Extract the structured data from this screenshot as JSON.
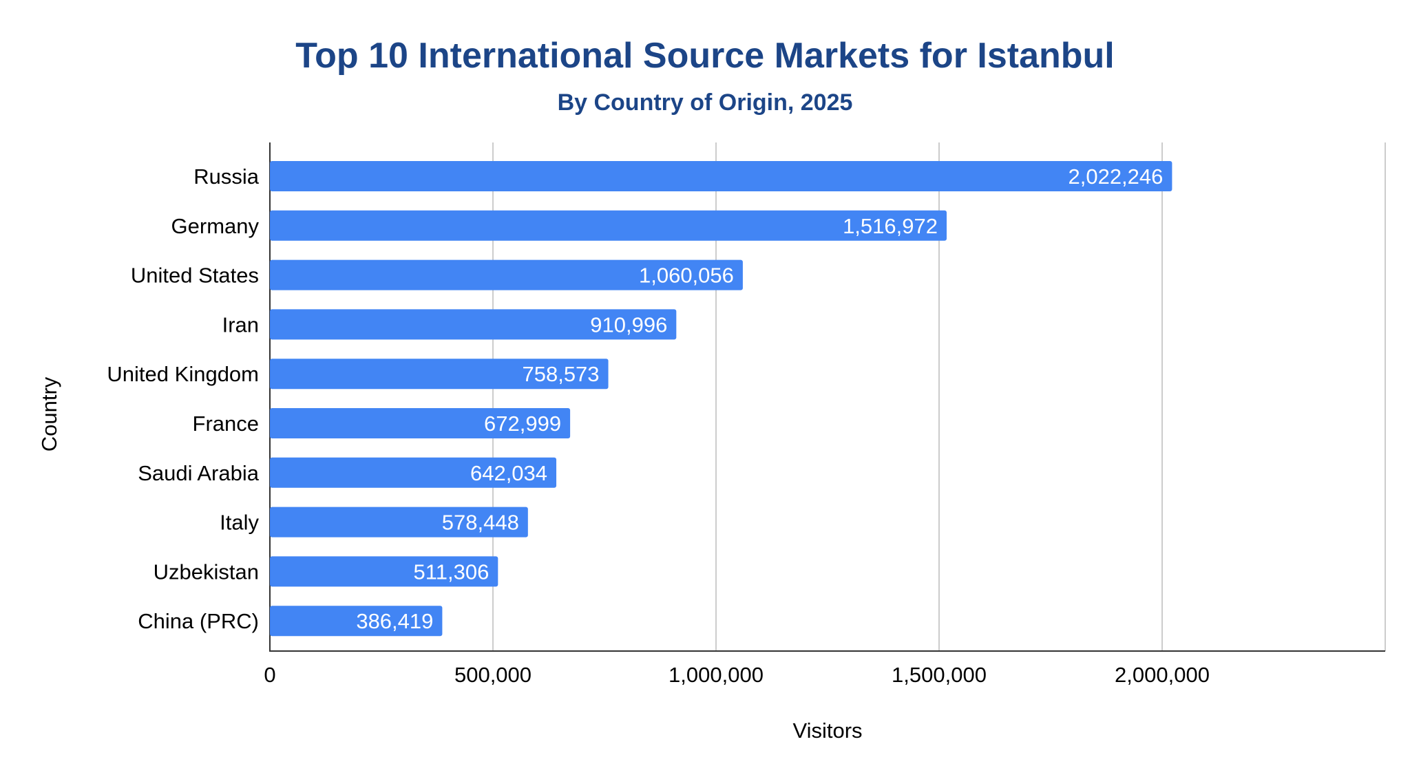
{
  "chart_data": {
    "type": "bar",
    "orientation": "horizontal",
    "title": "Top 10 International Source Markets for Istanbul",
    "subtitle": "By Country of Origin, 2025",
    "xlabel": "Visitors",
    "ylabel": "Country",
    "categories": [
      "Russia",
      "Germany",
      "United States",
      "Iran",
      "United Kingdom",
      "France",
      "Saudi Arabia",
      "Italy",
      "Uzbekistan",
      "China (PRC)"
    ],
    "values": [
      2022246,
      1516972,
      1060056,
      910996,
      758573,
      672999,
      642034,
      578448,
      511306,
      386419
    ],
    "data_labels": [
      "2,022,246",
      "1,516,972",
      "1,060,056",
      "910,996",
      "758,573",
      "672,999",
      "642,034",
      "578,448",
      "511,306",
      "386,419"
    ],
    "xlim": [
      0,
      2500000
    ],
    "xticks": [
      0,
      500000,
      1000000,
      1500000,
      2000000
    ],
    "xtick_labels": [
      "0",
      "500,000",
      "1,000,000",
      "1,500,000",
      "2,000,000"
    ],
    "grid": true,
    "legend": "none",
    "colors": {
      "bar": "#4285F4",
      "title": "#1C4587",
      "grid": "#CCCCCC",
      "axis": "#333333",
      "data_label": "#FFFFFF"
    }
  }
}
